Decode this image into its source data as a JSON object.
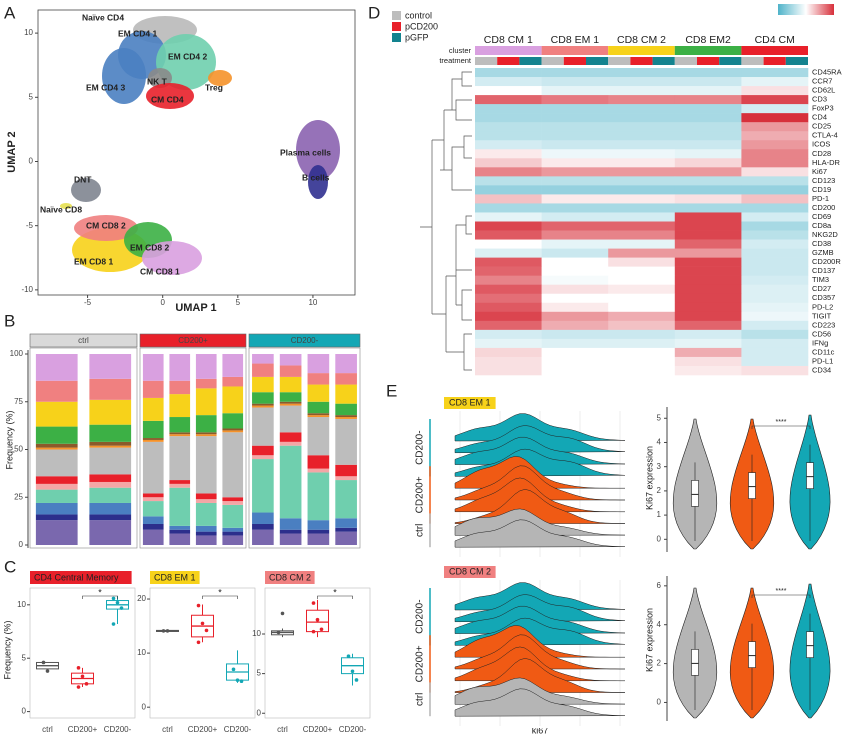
{
  "panel_labels": [
    "A",
    "B",
    "C",
    "D",
    "E"
  ],
  "umap": {
    "xlabel": "UMAP 1",
    "ylabel": "UMAP 2",
    "xlim": [
      -8.3,
      12.8
    ],
    "ylim": [
      -10.4,
      11.8
    ],
    "xticks": [
      -5,
      0,
      5,
      10
    ],
    "yticks": [
      -10,
      -5,
      0,
      5,
      10
    ],
    "clusters": [
      "Naïve CD4",
      "EM CD4 1",
      "EM CD4 2",
      "NK T",
      "EM CD4 3",
      "CM CD4",
      "Treg",
      "Plasma cells",
      "B cells",
      "DNT",
      "Naïve CD8",
      "CM CD8 2",
      "EM CD8 2",
      "EM CD8 1",
      "CM CD8 1"
    ]
  },
  "composition": {
    "ylabel": "Frequency (%)",
    "ylim": [
      0,
      100
    ],
    "yticks": [
      0,
      25,
      50,
      75,
      100
    ],
    "segment_colors": [
      "#7a68ae",
      "#2c2f8c",
      "#4a7fc1",
      "#6fcfae",
      "#f4a6a6",
      "#e8202a",
      "#bdbdbd",
      "#f5922a",
      "#8b5a2b",
      "#3cb045",
      "#f7d21a",
      "#f08080",
      "#d9a0e0"
    ],
    "facets": [
      {
        "label": "ctrl",
        "color": "#d9d9d9",
        "bars": [
          [
            13,
            3,
            6,
            7,
            3,
            4,
            14,
            1,
            2,
            9,
            13,
            11,
            14
          ],
          [
            13,
            3,
            6,
            8,
            3,
            4,
            14,
            1,
            2,
            9,
            13,
            11,
            13
          ]
        ]
      },
      {
        "label": "CD200+",
        "color": "#e8202a",
        "bars": [
          [
            8,
            3,
            4,
            8,
            2,
            2,
            27,
            1,
            1,
            9,
            12,
            9,
            14
          ],
          [
            6,
            2,
            2,
            20,
            2,
            2,
            23,
            1,
            1,
            8,
            12,
            7,
            14
          ],
          [
            5,
            2,
            3,
            12,
            2,
            3,
            30,
            1,
            1,
            9,
            14,
            5,
            13
          ],
          [
            5,
            2,
            2,
            12,
            2,
            2,
            34,
            1,
            1,
            8,
            14,
            5,
            12
          ]
        ]
      },
      {
        "label": "CD200-",
        "color": "#13a7b5",
        "bars": [
          [
            8,
            3,
            6,
            28,
            2,
            5,
            20,
            1,
            1,
            6,
            8,
            7,
            5
          ],
          [
            6,
            2,
            6,
            38,
            2,
            5,
            14,
            1,
            1,
            5,
            8,
            6,
            6
          ],
          [
            6,
            2,
            5,
            25,
            2,
            7,
            20,
            1,
            1,
            6,
            9,
            6,
            10
          ],
          [
            7,
            2,
            5,
            20,
            2,
            6,
            24,
            1,
            1,
            6,
            10,
            6,
            10
          ]
        ]
      }
    ]
  },
  "boxplots": {
    "ylabel": "Frequency (%)",
    "categories": [
      "ctrl",
      "CD200+",
      "CD200-"
    ],
    "colors": [
      "#555555",
      "#e8202a",
      "#13a7b5"
    ],
    "significance": "*",
    "panels": [
      {
        "title": "CD4 Central Memory",
        "title_color": "#e8202a",
        "ylim": [
          -0.6,
          11.2
        ],
        "yticks": [
          0,
          5,
          10
        ],
        "boxes": [
          {
            "min": 3.8,
            "q1": 4.0,
            "median": 4.3,
            "q3": 4.6,
            "max": 4.6,
            "points": [
              4.6,
              3.8
            ]
          },
          {
            "min": 2.3,
            "q1": 2.6,
            "median": 3.1,
            "q3": 3.6,
            "max": 4.1,
            "points": [
              4.1,
              3.3,
              2.6,
              2.3
            ]
          },
          {
            "min": 8.2,
            "q1": 9.6,
            "median": 10.0,
            "q3": 10.4,
            "max": 10.8,
            "points": [
              10.6,
              10.2,
              9.7,
              8.2
            ]
          }
        ]
      },
      {
        "title": "CD8 EM 1",
        "title_color": "#f7d21a",
        "ylim": [
          -2,
          21.3
        ],
        "yticks": [
          0,
          10,
          20
        ],
        "boxes": [
          {
            "min": 14.0,
            "q1": 14.0,
            "median": 14.1,
            "q3": 14.2,
            "max": 14.2,
            "points": [
              14.1,
              14.1
            ]
          },
          {
            "min": 12,
            "q1": 13,
            "median": 15,
            "q3": 17,
            "max": 19,
            "points": [
              18.8,
              15.5,
              14.2,
              12
            ]
          },
          {
            "min": 4.5,
            "q1": 5,
            "median": 6.5,
            "q3": 8,
            "max": 10.5,
            "points": [
              7,
              5,
              4.8
            ]
          }
        ]
      },
      {
        "title": "CD8 CM 2",
        "title_color": "#f08080",
        "ylim": [
          -0.6,
          15.3
        ],
        "yticks": [
          0,
          5,
          10
        ],
        "boxes": [
          {
            "min": 9.6,
            "q1": 9.9,
            "median": 10.2,
            "q3": 10.4,
            "max": 10.7,
            "points": [
              10.2,
              12.6
            ]
          },
          {
            "min": 9.6,
            "q1": 10.3,
            "median": 11.5,
            "q3": 13,
            "max": 14.3,
            "points": [
              13.9,
              11.8,
              10.6,
              10.3
            ]
          },
          {
            "min": 3.5,
            "q1": 5,
            "median": 6,
            "q3": 7,
            "max": 7.5,
            "points": [
              7.2,
              5.3,
              4.2
            ]
          }
        ]
      }
    ]
  },
  "heatmap": {
    "legend": [
      {
        "label": "control",
        "color": "#bdbdbd"
      },
      {
        "label": "pCD200",
        "color": "#e8202a"
      },
      {
        "label": "pGFP",
        "color": "#13838f"
      }
    ],
    "annotation_rows": [
      "cluster",
      "treatment"
    ],
    "clusters": [
      {
        "label": "CD8 CM 1",
        "color": "#d9a0e0"
      },
      {
        "label": "CD8 EM 1",
        "color": "#f08080"
      },
      {
        "label": "CD8 CM 2",
        "color": "#f7d21a"
      },
      {
        "label": "CD8 EM2",
        "color": "#3cb045"
      },
      {
        "label": "CD4 CM",
        "color": "#e8202a"
      }
    ],
    "zlim": [
      -2,
      2
    ],
    "colors": [
      "#4fb3c9",
      "#ffffff",
      "#d7303b"
    ],
    "markers": [
      "CD45RA",
      "CCR7",
      "CD62L",
      "CD3",
      "FoxP3",
      "CD4",
      "CD25",
      "CTLA-4",
      "ICOS",
      "CD28",
      "HLA-DR",
      "Ki67",
      "CD123",
      "CD19",
      "PD-1",
      "CD200",
      "CD69",
      "CD8a",
      "NKG2D",
      "CD38",
      "GZMB",
      "CD200R",
      "CD137",
      "TIM3",
      "CD27",
      "CD357",
      "PD-L2",
      "TIGIT",
      "CD223",
      "CD56",
      "IFNg",
      "CD11c",
      "PD-L1",
      "CD34"
    ],
    "values": [
      [
        -1,
        -1,
        -1,
        -1,
        -1
      ],
      [
        -0.5,
        -0.6,
        -0.6,
        -0.6,
        -0.3
      ],
      [
        0,
        -0.3,
        -0.3,
        -0.3,
        0.3
      ],
      [
        1.5,
        1.3,
        1.2,
        1.2,
        1.8
      ],
      [
        -1,
        -1,
        -1,
        -1,
        -0.5
      ],
      [
        -1,
        -1,
        -1,
        -1,
        2
      ],
      [
        -0.8,
        -0.8,
        -0.8,
        -0.8,
        1
      ],
      [
        -0.8,
        -0.8,
        -0.8,
        -0.8,
        0.8
      ],
      [
        -0.5,
        -0.6,
        -0.6,
        -0.6,
        1
      ],
      [
        0.2,
        -0.2,
        -0.2,
        -0.3,
        1.2
      ],
      [
        0.5,
        0.2,
        0.2,
        0.4,
        1.2
      ],
      [
        1.2,
        1,
        1,
        1,
        0.3
      ],
      [
        -0.8,
        -0.8,
        -0.8,
        -0.8,
        -0.8
      ],
      [
        -1.2,
        -1.2,
        -1.2,
        -1.2,
        -1.2
      ],
      [
        0.6,
        0.2,
        0.2,
        0.3,
        0.6
      ],
      [
        -1,
        -1,
        -1,
        -1,
        -1
      ],
      [
        -0.3,
        -0.5,
        -0.5,
        1.8,
        -0.5
      ],
      [
        1.8,
        1.5,
        1.5,
        1.8,
        -1
      ],
      [
        1.6,
        1.2,
        1.2,
        1.8,
        -0.8
      ],
      [
        0,
        -0.3,
        -0.3,
        1.5,
        -0.5
      ],
      [
        -0.4,
        -0.6,
        1,
        1,
        -0.6
      ],
      [
        1.6,
        0,
        0.3,
        1.8,
        -0.6
      ],
      [
        1.5,
        0,
        0,
        1.8,
        -0.6
      ],
      [
        1.2,
        -0.1,
        0,
        1.8,
        -0.5
      ],
      [
        1.6,
        0.3,
        0.2,
        1.8,
        -0.4
      ],
      [
        1.4,
        0,
        0,
        1.8,
        -0.4
      ],
      [
        1.6,
        0.2,
        0,
        1.8,
        -0.3
      ],
      [
        1.8,
        1,
        0.8,
        1.8,
        -0.2
      ],
      [
        1.5,
        0.8,
        0.6,
        1.5,
        -0.5
      ],
      [
        -0.5,
        -0.6,
        -0.6,
        -0.5,
        -0.8
      ],
      [
        -0.3,
        -0.4,
        -0.4,
        -0.3,
        -0.5
      ],
      [
        0.4,
        0,
        0,
        0.8,
        -0.5
      ],
      [
        0.3,
        0,
        0,
        0.3,
        -0.5
      ],
      [
        0.3,
        0,
        0,
        0.2,
        0.3
      ]
    ]
  },
  "ki67": {
    "xlabel": "ki67",
    "ylabel": "Ki67 expression",
    "groups": [
      "CD200-",
      "CD200+",
      "ctrl"
    ],
    "significance": "****",
    "panels": [
      {
        "title": "CD8 EM 1",
        "title_color": "#f7d21a",
        "ylim": [
          -0.4,
          5.3
        ],
        "yticks": [
          0,
          1,
          2,
          3,
          4,
          5
        ]
      },
      {
        "title": "CD8 CM 2",
        "title_color": "#f08080",
        "ylim": [
          -0.8,
          6.3
        ],
        "yticks": [
          0,
          2,
          4,
          6
        ]
      }
    ]
  }
}
